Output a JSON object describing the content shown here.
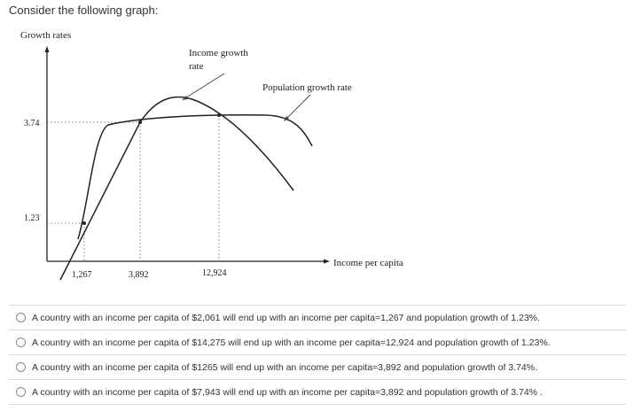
{
  "question": {
    "prompt": "Consider the following graph:"
  },
  "graph": {
    "y_axis_label": "Growth rates",
    "x_axis_label": "Income per capita",
    "curve_labels": {
      "income_growth_line1": "Income growth",
      "income_growth_line2": "rate",
      "population_growth": "Population growth rate"
    },
    "y_ticks": [
      "3.74",
      "1.23"
    ],
    "x_ticks": [
      "1,267",
      "3,892",
      "12,924"
    ]
  },
  "choices": [
    {
      "label": "A country with an income per capita of $2,061 will end up with an income per capita=1,267 and population growth of 1.23%."
    },
    {
      "label": "A country with an income per capita of $14,275 will end up with an income per capita=12,924 and population growth of 1.23%."
    },
    {
      "label": "A country with an income per capita of $1265 will end up with an income per capita=3,892 and population growth of 3.74%."
    },
    {
      "label": "A country with an income per capita of $7,943 will end up with an income per capita=3,892 and population growth of 3.74% ."
    }
  ],
  "colors": {
    "text": "#333333",
    "line": "#222222",
    "divider": "#d9d9d9"
  }
}
